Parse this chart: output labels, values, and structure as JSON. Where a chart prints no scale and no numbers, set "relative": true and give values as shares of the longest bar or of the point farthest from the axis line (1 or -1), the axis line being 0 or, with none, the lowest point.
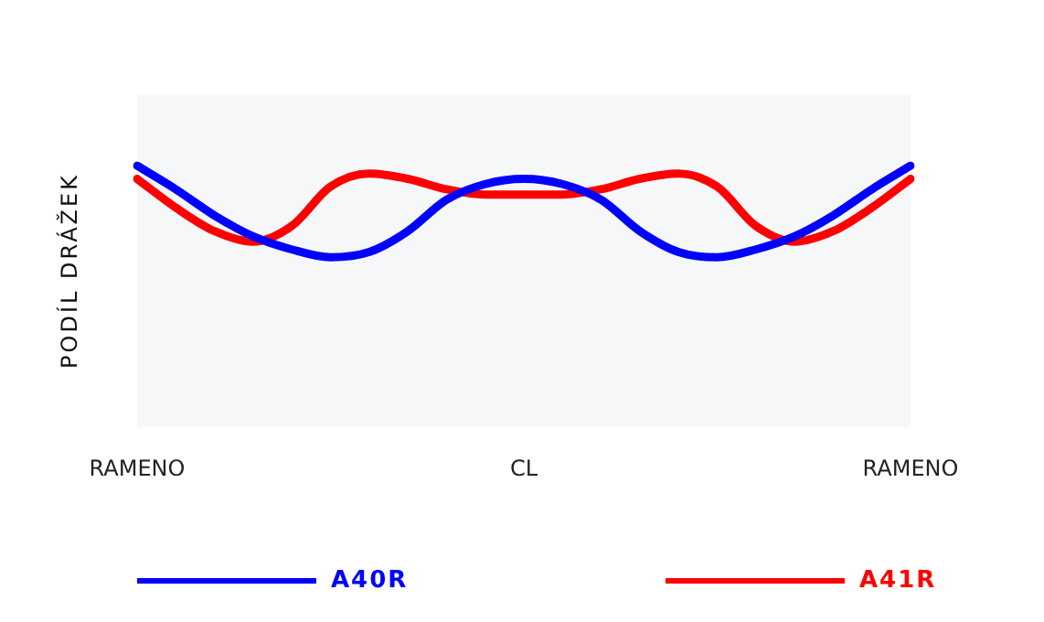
{
  "chart_data": {
    "type": "line",
    "relative": true,
    "ylabel": "PODÍL DRÁŽEK",
    "categories": [
      "RAMENO",
      null,
      null,
      null,
      null,
      null,
      null,
      null,
      null,
      null,
      "CL",
      null,
      null,
      null,
      null,
      null,
      null,
      null,
      null,
      null,
      "RAMENO"
    ],
    "series": [
      {
        "name": "A40R",
        "color": "#0000ff",
        "values": [
          1,
          0.91,
          0.81,
          0.73,
          0.68,
          0.65,
          0.67,
          0.75,
          0.87,
          0.93,
          0.95,
          0.93,
          0.87,
          0.75,
          0.67,
          0.65,
          0.68,
          0.73,
          0.81,
          0.91,
          1
        ]
      },
      {
        "name": "A41R",
        "color": "#ff0000",
        "values": [
          0.95,
          0.84,
          0.75,
          0.71,
          0.77,
          0.92,
          0.97,
          0.95,
          0.91,
          0.89,
          0.89,
          0.89,
          0.91,
          0.95,
          0.97,
          0.92,
          0.77,
          0.71,
          0.75,
          0.84,
          0.95
        ]
      }
    ],
    "grid": false,
    "legend": "bottom",
    "marker": "none",
    "line_style": "solid"
  }
}
